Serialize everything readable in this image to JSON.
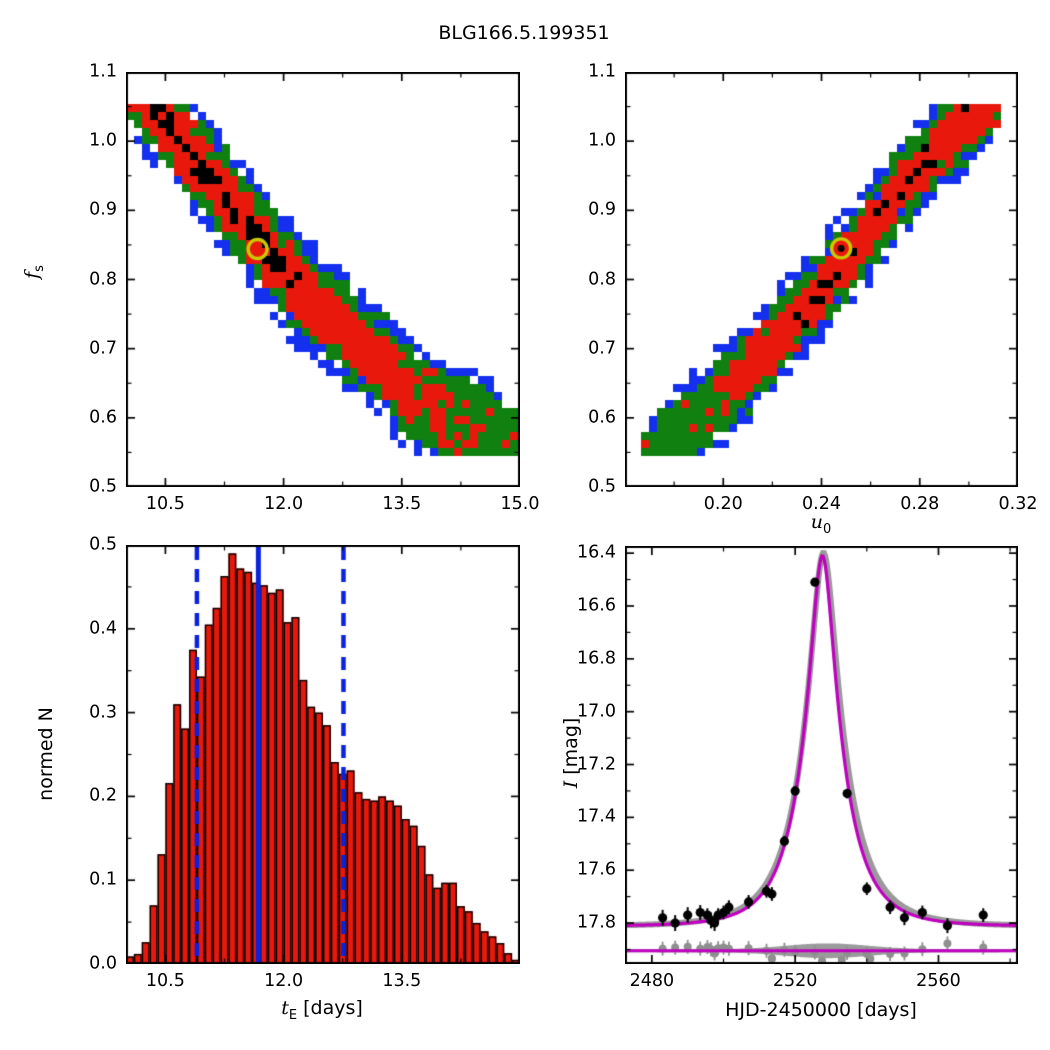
{
  "title": "BLG166.5.199351",
  "colors": {
    "sigma1_red": "#e8190c",
    "sigma2_green": "#108010",
    "sigma3_blue": "#1430ee",
    "core_black": "#000000",
    "best_fit_yellow": "#c9c900",
    "hist_bar_red": "#e8190c",
    "hist_line_blue": "#0a22dd",
    "model_magenta": "#bf00bf",
    "model_gray": "#9a9a9a",
    "data_black": "#000000",
    "residual_gray": "#8f8f8f"
  },
  "chart_data": [
    {
      "id": "fs-vs-te",
      "type": "heatmap",
      "title": "",
      "xlabel": "",
      "ylabel": {
        "main": "f",
        "sub": "s"
      },
      "xlim": [
        10.0,
        15.0
      ],
      "ylim": [
        0.5,
        1.1
      ],
      "xticks": [
        10.5,
        12.0,
        13.5,
        15.0
      ],
      "xtick_labels": [
        "10.5",
        "12.0",
        "13.5",
        "15.0"
      ],
      "xticks_minor": [
        11.25,
        12.75,
        14.25
      ],
      "yticks": [
        0.5,
        0.6,
        0.7,
        0.8,
        0.9,
        1.0,
        1.1
      ],
      "ytick_labels": [
        "0.5",
        "0.6",
        "0.7",
        "0.8",
        "0.9",
        "1.0",
        "1.1"
      ],
      "yticks_minor": [
        0.55,
        0.65,
        0.75,
        0.85,
        0.95,
        1.05
      ],
      "grid": false,
      "legend": false,
      "levels": {
        "black": "chain core",
        "red": "1-sigma",
        "green": "2-sigma",
        "blue": "3-sigma"
      },
      "best_fit": {
        "x": 11.67,
        "y": 0.844,
        "marker": "open-yellow-circle"
      },
      "band": {
        "centerline": [
          [
            10.03,
            1.075
          ],
          [
            10.2,
            1.06
          ],
          [
            10.3,
            1.05
          ],
          [
            10.5,
            1.028
          ],
          [
            10.7,
            1.0
          ],
          [
            10.9,
            0.972
          ],
          [
            11.1,
            0.944
          ],
          [
            11.3,
            0.916
          ],
          [
            11.5,
            0.886
          ],
          [
            11.7,
            0.856
          ],
          [
            11.9,
            0.826
          ],
          [
            12.1,
            0.8
          ],
          [
            12.3,
            0.776
          ],
          [
            12.5,
            0.756
          ],
          [
            12.7,
            0.736
          ],
          [
            12.9,
            0.716
          ],
          [
            13.1,
            0.696
          ],
          [
            13.3,
            0.676
          ],
          [
            13.5,
            0.64
          ],
          [
            13.7,
            0.628
          ],
          [
            13.9,
            0.614
          ],
          [
            14.1,
            0.6
          ],
          [
            14.3,
            0.59
          ],
          [
            14.5,
            0.578
          ],
          [
            14.7,
            0.568
          ],
          [
            14.95,
            0.558
          ]
        ],
        "halfwidth": 0.074,
        "xmin": 10.03,
        "xmax": 14.97,
        "ycap_top": 1.052,
        "ycap_bot": 0.548,
        "black_zone": [
          10.35,
          12.2
        ],
        "red_fade_start": 13.55,
        "red_fade_len": 1.1,
        "seed": 77
      }
    },
    {
      "id": "fs-vs-u0",
      "type": "heatmap",
      "title": "",
      "xlabel": {
        "main": "u",
        "sub": "0"
      },
      "ylabel": {
        "main": "f",
        "sub": "s"
      },
      "xlim": [
        0.16,
        0.32
      ],
      "ylim": [
        0.5,
        1.1
      ],
      "xticks": [
        0.2,
        0.24,
        0.28,
        0.32
      ],
      "xtick_labels": [
        "0.20",
        "0.24",
        "0.28",
        "0.32"
      ],
      "xticks_minor": [
        0.18,
        0.22,
        0.26,
        0.3
      ],
      "yticks": [
        0.5,
        0.6,
        0.7,
        0.8,
        0.9,
        1.0,
        1.1
      ],
      "ytick_labels": [
        "0.5",
        "0.6",
        "0.7",
        "0.8",
        "0.9",
        "1.0",
        "1.1"
      ],
      "yticks_minor": [
        0.55,
        0.65,
        0.75,
        0.85,
        0.95,
        1.05
      ],
      "grid": false,
      "legend": false,
      "levels": {
        "black": "chain core",
        "red": "1-sigma",
        "green": "2-sigma",
        "blue": "3-sigma"
      },
      "best_fit": {
        "x": 0.248,
        "y": 0.845,
        "marker": "open-yellow-circle-dot"
      },
      "band": {
        "centerline": [
          [
            0.168,
            0.545
          ],
          [
            0.178,
            0.565
          ],
          [
            0.19,
            0.6
          ],
          [
            0.2,
            0.635
          ],
          [
            0.21,
            0.67
          ],
          [
            0.22,
            0.705
          ],
          [
            0.23,
            0.745
          ],
          [
            0.24,
            0.785
          ],
          [
            0.25,
            0.83
          ],
          [
            0.26,
            0.875
          ],
          [
            0.27,
            0.92
          ],
          [
            0.28,
            0.963
          ],
          [
            0.29,
            1.0
          ],
          [
            0.3,
            1.03
          ],
          [
            0.312,
            1.055
          ]
        ],
        "halfwidth": 0.063,
        "xmin": 0.168,
        "xmax": 0.312,
        "ycap_top": 1.052,
        "ycap_bot": 0.548,
        "black_zone": [
          0.227,
          0.304
        ],
        "red_fade_below_f": 0.66,
        "red_fade_f_len": 0.085,
        "seed": 913
      }
    },
    {
      "id": "te-histogram",
      "type": "bar",
      "title": "",
      "xlabel": {
        "main": "t",
        "sub": "E",
        "suffix": " [days]"
      },
      "ylabel": "normed N",
      "xlim": [
        10.0,
        15.0
      ],
      "ylim": [
        0.0,
        0.5
      ],
      "xticks": [
        10.5,
        12.0,
        13.5
      ],
      "xtick_labels": [
        "10.5",
        "12.0",
        "13.5"
      ],
      "xticks_minor": [
        11.25,
        12.75,
        14.25
      ],
      "yticks": [
        0.0,
        0.1,
        0.2,
        0.3,
        0.4,
        0.5
      ],
      "ytick_labels": [
        "0.0",
        "0.1",
        "0.2",
        "0.3",
        "0.4",
        "0.5"
      ],
      "yticks_minor": [
        0.05,
        0.15,
        0.25,
        0.35,
        0.45
      ],
      "grid": false,
      "legend": false,
      "bin_start": 10.0,
      "bin_width": 0.1,
      "values": [
        0.009,
        0.012,
        0.026,
        0.07,
        0.131,
        0.216,
        0.31,
        0.281,
        0.375,
        0.343,
        0.405,
        0.425,
        0.463,
        0.49,
        0.472,
        0.468,
        0.455,
        0.452,
        0.443,
        0.447,
        0.408,
        0.414,
        0.339,
        0.307,
        0.3,
        0.285,
        0.241,
        0.227,
        0.231,
        0.205,
        0.197,
        0.195,
        0.2,
        0.195,
        0.189,
        0.173,
        0.165,
        0.141,
        0.107,
        0.091,
        0.097,
        0.097,
        0.069,
        0.063,
        0.049,
        0.039,
        0.033,
        0.025,
        0.013,
        0.005
      ],
      "median_line": 11.68,
      "percentile_lines": [
        10.9,
        12.76
      ]
    },
    {
      "id": "lightcurve",
      "type": "scatter",
      "title": "",
      "xlabel": "HJD-2450000 [days]",
      "ylabel": {
        "main": "I",
        "suffix": " [mag]"
      },
      "xlim": [
        2472.5,
        2582.2
      ],
      "ylim_top": 16.373,
      "ylim_bottom": 17.955,
      "y_axis_inverted": true,
      "xticks": [
        2480,
        2520,
        2560
      ],
      "xtick_labels": [
        "2480",
        "2520",
        "2560"
      ],
      "xticks_minor": [
        2500,
        2540,
        2580
      ],
      "yticks": [
        16.4,
        16.6,
        16.8,
        17.0,
        17.2,
        17.4,
        17.6,
        17.8
      ],
      "ytick_labels": [
        "16.4",
        "16.6",
        "16.8",
        "17.0",
        "17.2",
        "17.4",
        "17.6",
        "17.8"
      ],
      "yticks_minor": [
        16.5,
        16.7,
        16.9,
        17.1,
        17.3,
        17.5,
        17.7,
        17.9
      ],
      "grid": false,
      "legend": false,
      "model": {
        "t0": 2527.6,
        "tE": 11.7,
        "u0": 0.247,
        "fs": 0.84,
        "baseline": 17.812
      },
      "model_alt": {
        "t0": 2527.9,
        "tE": 12.8,
        "u0": 0.235,
        "fs": 0.8,
        "baseline": 17.812
      },
      "points": [
        [
          2483.0,
          17.78,
          0.03
        ],
        [
          2486.5,
          17.8,
          0.03
        ],
        [
          2490.0,
          17.77,
          0.03
        ],
        [
          2493.5,
          17.76,
          0.028
        ],
        [
          2495.5,
          17.77,
          0.026
        ],
        [
          2496.5,
          17.79,
          0.03
        ],
        [
          2497.5,
          17.8,
          0.03
        ],
        [
          2498.5,
          17.77,
          0.026
        ],
        [
          2500.0,
          17.76,
          0.026
        ],
        [
          2501.5,
          17.74,
          0.026
        ],
        [
          2507.0,
          17.72,
          0.026
        ],
        [
          2512.0,
          17.68,
          0.024
        ],
        [
          2513.5,
          17.69,
          0.026
        ],
        [
          2517.0,
          17.49,
          0.02
        ],
        [
          2520.0,
          17.3,
          0.018
        ],
        [
          2525.5,
          16.51,
          0.014
        ],
        [
          2534.5,
          17.31,
          0.018
        ],
        [
          2540.0,
          17.67,
          0.024
        ],
        [
          2546.5,
          17.74,
          0.026
        ],
        [
          2550.5,
          17.78,
          0.028
        ],
        [
          2555.5,
          17.76,
          0.026
        ],
        [
          2562.5,
          17.81,
          0.028
        ],
        [
          2572.5,
          17.77,
          0.026
        ]
      ],
      "residual": {
        "line": 17.905,
        "band": {
          "center": 2529,
          "width": 16,
          "max_half": 0.028,
          "min_half": 0.006
        },
        "offsets": [
          [
            2483.0,
            -0.008
          ],
          [
            2486.5,
            -0.012
          ],
          [
            2490.0,
            -0.015
          ],
          [
            2493.5,
            -0.008
          ],
          [
            2495.5,
            -0.014
          ],
          [
            2496.5,
            -0.006
          ],
          [
            2497.5,
            0.01
          ],
          [
            2498.5,
            -0.01
          ],
          [
            2500.0,
            -0.012
          ],
          [
            2501.5,
            -0.008
          ],
          [
            2507.0,
            -0.01
          ],
          [
            2512.0,
            0.0
          ],
          [
            2513.5,
            0.028
          ],
          [
            2517.0,
            -0.004
          ],
          [
            2520.0,
            0.004
          ],
          [
            2525.5,
            0.006
          ],
          [
            2534.5,
            0.008
          ],
          [
            2540.0,
            0.012
          ],
          [
            2546.5,
            0.012
          ],
          [
            2550.5,
            0.01
          ],
          [
            2555.5,
            -0.006
          ],
          [
            2562.5,
            -0.028
          ],
          [
            2572.5,
            -0.012
          ]
        ],
        "outliers": [
          [
            2513.5,
            0.03
          ],
          [
            2527.5,
            0.038
          ],
          [
            2533.0,
            0.034
          ],
          [
            2541.0,
            0.03
          ]
        ]
      }
    }
  ]
}
